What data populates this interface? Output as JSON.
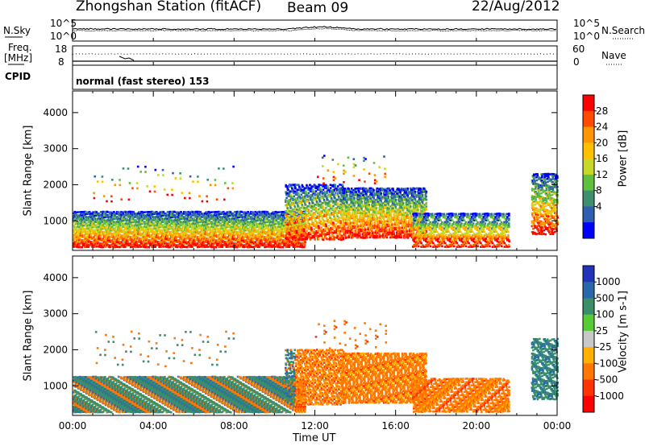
{
  "header": {
    "station": "Zhongshan Station (fitACF)",
    "beam": "Beam 09",
    "date": "22/Aug/2012"
  },
  "panels": {
    "nsky_label": "N.Sky",
    "nsearch_label": "N.Search",
    "freq_label_line1": "Freq.",
    "freq_label_line2": "[MHz]",
    "nave_label": "Nave",
    "cpid_label": "CPID",
    "cpid_text": "normal (fast stereo) 153"
  },
  "chart_data": [
    {
      "type": "line",
      "name": "noise-panel",
      "left_ticks": [
        "10^5",
        "10^0"
      ],
      "right_ticks": [
        "10^5",
        "10^0"
      ],
      "x_range": [
        0,
        24
      ]
    },
    {
      "type": "line",
      "name": "freq-panel",
      "left_ticks": [
        "18",
        "8"
      ],
      "right_ticks": [
        "60",
        "0"
      ],
      "x_range": [
        0,
        24
      ]
    },
    {
      "type": "heatmap",
      "name": "power",
      "ylabel": "Slant Range [km]",
      "yticks": [
        1000,
        2000,
        3000,
        4000
      ],
      "ylim": [
        180,
        4600
      ],
      "xlim": [
        0,
        24
      ],
      "colorbar_label": "Power [dB]",
      "colorbar_ticks": [
        "28",
        "24",
        "20",
        "16",
        "12",
        "8",
        "4"
      ],
      "colorbar_colors": [
        "#ff0000",
        "#ff4a00",
        "#ff9600",
        "#ffc000",
        "#c8d826",
        "#5fbf3f",
        "#3f8f6f",
        "#2f5fb0",
        "#0000ff"
      ]
    },
    {
      "type": "heatmap",
      "name": "velocity",
      "ylabel": "Slant Range [km]",
      "yticks": [
        1000,
        2000,
        3000,
        4000
      ],
      "ylim": [
        180,
        4600
      ],
      "xlim": [
        0,
        24
      ],
      "xlabel": "Time UT",
      "xticks": [
        "00:00",
        "04:00",
        "08:00",
        "12:00",
        "16:00",
        "20:00",
        "00:00"
      ],
      "colorbar_label": "Velocity [m s-1]",
      "colorbar_ticks": [
        "1000",
        "500",
        "100",
        "25",
        "-25",
        "-100",
        "-500",
        "-1000"
      ],
      "colorbar_colors": [
        "#2233bb",
        "#2a66aa",
        "#3a8f6a",
        "#55cc33",
        "#c8c8c8",
        "#ffb000",
        "#ff7700",
        "#ff3300",
        "#ff0000"
      ]
    }
  ]
}
